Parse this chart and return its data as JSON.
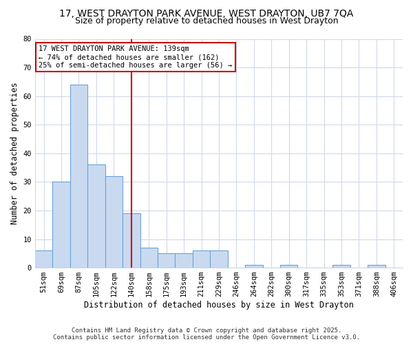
{
  "title1": "17, WEST DRAYTON PARK AVENUE, WEST DRAYTON, UB7 7QA",
  "title2": "Size of property relative to detached houses in West Drayton",
  "xlabel": "Distribution of detached houses by size in West Drayton",
  "ylabel": "Number of detached properties",
  "categories": [
    "51sqm",
    "69sqm",
    "87sqm",
    "105sqm",
    "122sqm",
    "140sqm",
    "158sqm",
    "175sqm",
    "193sqm",
    "211sqm",
    "229sqm",
    "246sqm",
    "264sqm",
    "282sqm",
    "300sqm",
    "317sqm",
    "335sqm",
    "353sqm",
    "371sqm",
    "388sqm",
    "406sqm"
  ],
  "values": [
    6,
    30,
    64,
    36,
    32,
    19,
    7,
    5,
    5,
    6,
    6,
    0,
    1,
    0,
    1,
    0,
    0,
    1,
    0,
    1,
    0
  ],
  "bar_color": "#c9daf0",
  "bar_edge_color": "#6ba3d6",
  "vline_index": 5,
  "vline_color": "#cc0000",
  "annotation_lines": [
    "17 WEST DRAYTON PARK AVENUE: 139sqm",
    "← 74% of detached houses are smaller (162)",
    "25% of semi-detached houses are larger (56) →"
  ],
  "annotation_box_color": "#cc0000",
  "ylim": [
    0,
    80
  ],
  "yticks": [
    0,
    10,
    20,
    30,
    40,
    50,
    60,
    70,
    80
  ],
  "footer": "Contains HM Land Registry data © Crown copyright and database right 2025.\nContains public sector information licensed under the Open Government Licence v3.0.",
  "bg_color": "#ffffff",
  "plot_bg_color": "#ffffff",
  "grid_color": "#d0d8e8",
  "title_fontsize": 10,
  "subtitle_fontsize": 9,
  "axis_label_fontsize": 8.5,
  "tick_fontsize": 7.5,
  "annotation_fontsize": 7.5,
  "footer_fontsize": 6.5
}
